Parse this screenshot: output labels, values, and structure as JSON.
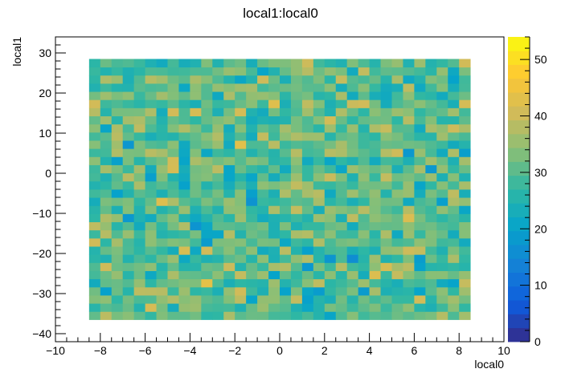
{
  "chart_data": {
    "type": "heatmap",
    "title": "local1:local0",
    "xlabel": "local0",
    "ylabel": "local1",
    "xlim": [
      -10,
      10
    ],
    "ylim": [
      -42,
      34
    ],
    "x_ticks": [
      "−10",
      "−8",
      "−6",
      "−4",
      "−2",
      "0",
      "2",
      "4",
      "6",
      "8",
      "10"
    ],
    "y_ticks": [
      "−40",
      "−30",
      "−20",
      "−10",
      "0",
      "10",
      "20",
      "30"
    ],
    "colorbar": {
      "min": 0,
      "max": 54,
      "ticks": [
        "0",
        "10",
        "20",
        "30",
        "40",
        "50"
      ]
    },
    "cells": {
      "x_range": [
        -8.5,
        8.5
      ],
      "y_range": [
        -36.5,
        28.5
      ],
      "nx": 34,
      "ny": 32,
      "typical_value": 30,
      "value_span": [
        14,
        54
      ]
    },
    "palette": [
      "#352a87",
      "#0f5cdd",
      "#1481d6",
      "#06a4ca",
      "#2eb7a4",
      "#87bf77",
      "#d1bb59",
      "#fec832",
      "#f9fb0e"
    ]
  }
}
